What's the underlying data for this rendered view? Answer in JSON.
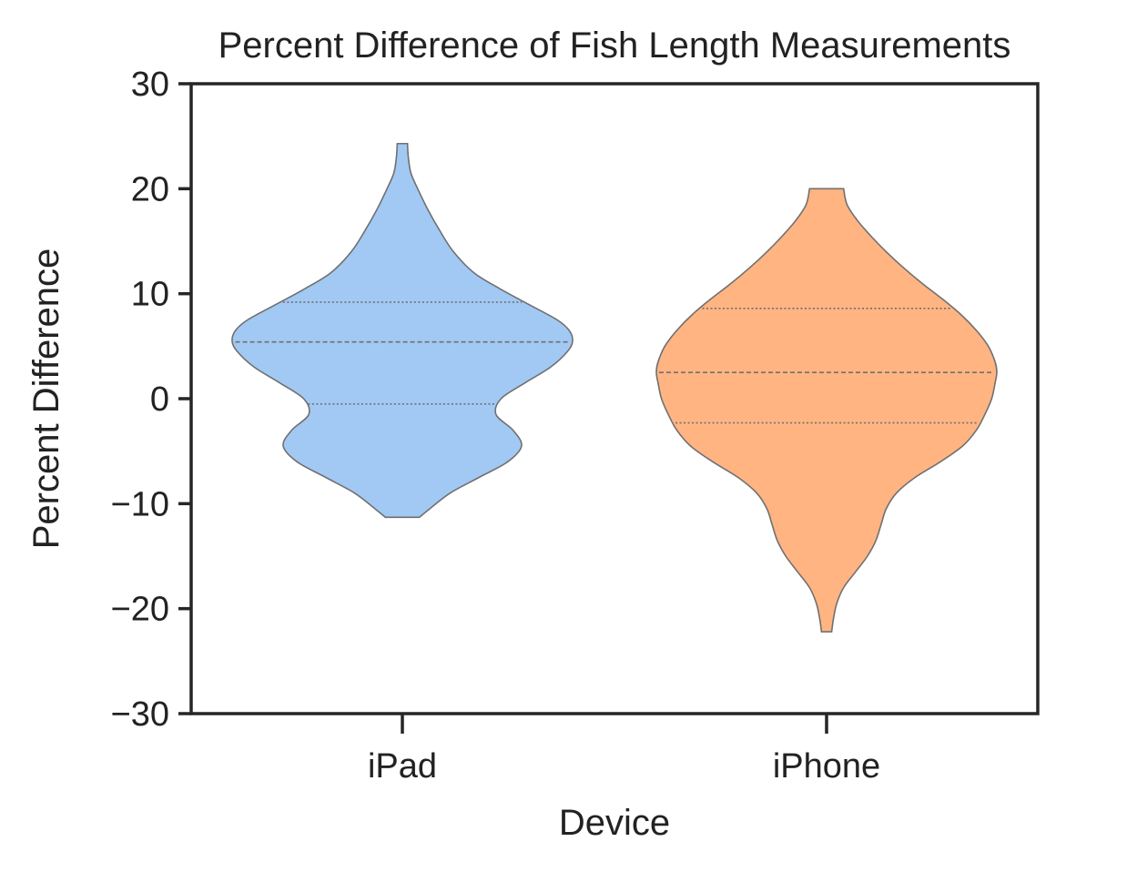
{
  "chart_data": {
    "type": "violin",
    "title": "Percent Difference of Fish Length Measurements",
    "xlabel": "Device",
    "ylabel": "Percent Difference",
    "ylim": [
      -30,
      30
    ],
    "yticks": [
      30,
      20,
      10,
      0,
      -10,
      -20,
      -30
    ],
    "ytick_labels": [
      "30",
      "20",
      "10",
      "0",
      "−10",
      "−20",
      "−30"
    ],
    "categories": [
      "iPad",
      "iPhone"
    ],
    "grid": false,
    "colors": {
      "iPad": "#a1c9f4",
      "iPhone": "#ffb482",
      "outline": "#707070",
      "axis": "#262626"
    },
    "series": [
      {
        "name": "iPad",
        "min": -11.3,
        "max": 24.3,
        "quartiles": {
          "q1": -0.5,
          "median": 5.4,
          "q3": 9.2
        },
        "density": [
          [
            -11.3,
            0.1
          ],
          [
            -10.5,
            0.16
          ],
          [
            -9.0,
            0.28
          ],
          [
            -7.5,
            0.45
          ],
          [
            -6.0,
            0.62
          ],
          [
            -4.5,
            0.7
          ],
          [
            -3.0,
            0.65
          ],
          [
            -1.5,
            0.55
          ],
          [
            0.0,
            0.58
          ],
          [
            1.5,
            0.72
          ],
          [
            3.0,
            0.87
          ],
          [
            4.5,
            0.97
          ],
          [
            5.5,
            1.0
          ],
          [
            6.5,
            0.98
          ],
          [
            7.5,
            0.91
          ],
          [
            9.0,
            0.74
          ],
          [
            10.5,
            0.57
          ],
          [
            12.0,
            0.42
          ],
          [
            14.0,
            0.3
          ],
          [
            16.0,
            0.22
          ],
          [
            18.0,
            0.15
          ],
          [
            20.0,
            0.09
          ],
          [
            21.5,
            0.05
          ],
          [
            23.0,
            0.035
          ],
          [
            24.3,
            0.03
          ]
        ]
      },
      {
        "name": "iPhone",
        "min": -22.2,
        "max": 20.0,
        "quartiles": {
          "q1": -2.3,
          "median": 2.5,
          "q3": 8.6
        },
        "density": [
          [
            -22.2,
            0.03
          ],
          [
            -21.0,
            0.04
          ],
          [
            -19.5,
            0.06
          ],
          [
            -18.0,
            0.1
          ],
          [
            -16.5,
            0.17
          ],
          [
            -15.0,
            0.24
          ],
          [
            -13.5,
            0.29
          ],
          [
            -12.0,
            0.32
          ],
          [
            -10.5,
            0.35
          ],
          [
            -9.0,
            0.41
          ],
          [
            -7.5,
            0.52
          ],
          [
            -6.0,
            0.67
          ],
          [
            -4.5,
            0.8
          ],
          [
            -3.0,
            0.88
          ],
          [
            -1.5,
            0.93
          ],
          [
            0.0,
            0.97
          ],
          [
            1.5,
            0.99
          ],
          [
            2.5,
            1.0
          ],
          [
            3.5,
            0.99
          ],
          [
            5.0,
            0.95
          ],
          [
            6.5,
            0.88
          ],
          [
            8.0,
            0.79
          ],
          [
            9.5,
            0.68
          ],
          [
            11.0,
            0.56
          ],
          [
            12.5,
            0.45
          ],
          [
            14.0,
            0.35
          ],
          [
            15.5,
            0.26
          ],
          [
            17.0,
            0.18
          ],
          [
            18.5,
            0.12
          ],
          [
            20.0,
            0.1
          ]
        ]
      }
    ]
  }
}
